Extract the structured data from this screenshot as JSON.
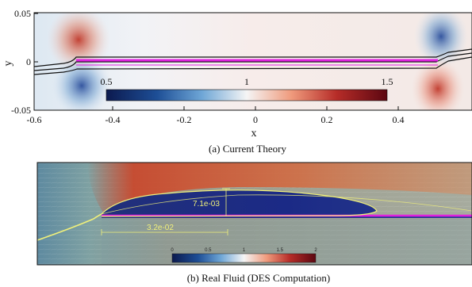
{
  "panel_a": {
    "caption": "(a) Current Theory",
    "xlabel": "x",
    "ylabel": "y",
    "x_ticks": [
      "-0.6",
      "-0.4",
      "-0.2",
      "0",
      "0.2",
      "0.4"
    ],
    "y_ticks": [
      "0.05",
      "0",
      "-0.05"
    ],
    "colorbar_ticks": [
      "0.5",
      "1",
      "1.5"
    ]
  },
  "panel_b": {
    "caption": "(b) Real Fluid (DES Computation)",
    "annotation_height": "7.1e-03",
    "annotation_length": "3.2e-02",
    "colorbar_ticks": [
      "0",
      "0.5",
      "1",
      "1.5",
      "2"
    ]
  },
  "colors": {
    "low": "#2b4a8e",
    "mid": "#f4f4f4",
    "high": "#b83a2f",
    "plate": "#e020e0",
    "streamline": "#f0f07a"
  }
}
